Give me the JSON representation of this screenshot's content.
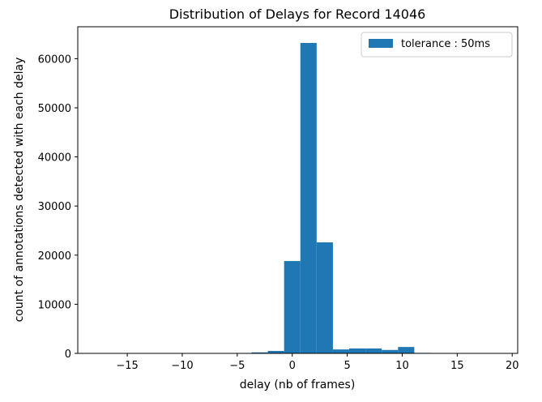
{
  "chart_data": {
    "type": "bar",
    "title": "Distribution of Delays for Record 14046",
    "xlabel": "delay (nb of frames)",
    "ylabel": "count of annotations detected with each delay",
    "xlim": [
      -19.5,
      20.5
    ],
    "ylim": [
      0,
      66500
    ],
    "xticks": [
      -15,
      -10,
      -5,
      0,
      5,
      10,
      15,
      20
    ],
    "xtick_labels": [
      "−15",
      "−10",
      "−5",
      "0",
      "5",
      "10",
      "15",
      "20"
    ],
    "yticks": [
      0,
      10000,
      20000,
      30000,
      40000,
      50000,
      60000
    ],
    "ytick_labels": [
      "0",
      "10000",
      "20000",
      "30000",
      "40000",
      "50000",
      "60000"
    ],
    "bin_width": 1.48,
    "series": [
      {
        "name": "tolerance : 50ms",
        "color": "#1f77b4",
        "bins": [
          {
            "x0": -18.5,
            "value": 0
          },
          {
            "x0": -17.02,
            "value": 0
          },
          {
            "x0": -15.54,
            "value": 0
          },
          {
            "x0": -14.06,
            "value": 0
          },
          {
            "x0": -12.58,
            "value": 0
          },
          {
            "x0": -11.1,
            "value": 0
          },
          {
            "x0": -9.62,
            "value": 0
          },
          {
            "x0": -8.14,
            "value": 0
          },
          {
            "x0": -6.66,
            "value": 0
          },
          {
            "x0": -5.18,
            "value": 50
          },
          {
            "x0": -3.7,
            "value": 200
          },
          {
            "x0": -2.22,
            "value": 500
          },
          {
            "x0": -0.74,
            "value": 18800
          },
          {
            "x0": 0.74,
            "value": 63200
          },
          {
            "x0": 2.22,
            "value": 22600
          },
          {
            "x0": 3.7,
            "value": 800
          },
          {
            "x0": 5.18,
            "value": 1000
          },
          {
            "x0": 6.66,
            "value": 1000
          },
          {
            "x0": 8.14,
            "value": 700
          },
          {
            "x0": 9.62,
            "value": 1300
          },
          {
            "x0": 11.1,
            "value": 100
          },
          {
            "x0": 12.58,
            "value": 50
          },
          {
            "x0": 14.06,
            "value": 0
          },
          {
            "x0": 15.54,
            "value": 0
          },
          {
            "x0": 17.02,
            "value": 0
          },
          {
            "x0": 18.5,
            "value": 0
          }
        ]
      }
    ],
    "legend_position": "top-right",
    "grid": false
  }
}
